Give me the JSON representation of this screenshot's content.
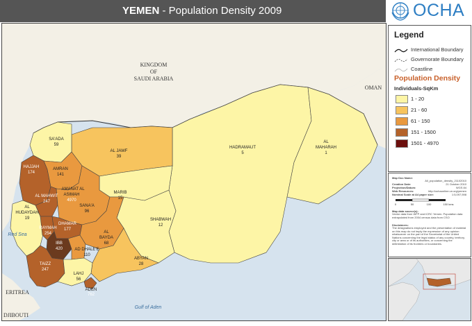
{
  "title": {
    "bold": "YEMEN",
    "rest": " - Population Density 2009"
  },
  "logo": {
    "text": "OCHA",
    "icon": "un-emblem-icon"
  },
  "legend": {
    "heading": "Legend",
    "boundaries": [
      "International Boundary",
      "Governorate Boundary",
      "Coastline"
    ],
    "density_heading": "Population Density",
    "units": "Individuals-SqKm",
    "classes": [
      {
        "label": "1 - 20",
        "color": "#fdf5a6"
      },
      {
        "label": "21 - 60",
        "color": "#f7c45e"
      },
      {
        "label": "61 - 150",
        "color": "#e9993f"
      },
      {
        "label": "151 - 1500",
        "color": "#b4622a"
      },
      {
        "label": "1501 - 4970",
        "color": "#6b0e0c"
      }
    ]
  },
  "countries": [
    "KINGDOM",
    "OF",
    "SAUDI ARABIA",
    "OMAN",
    "ERITREA",
    "DJIBOUTI"
  ],
  "seas": [
    "Red Sea",
    "Gulf of Aden"
  ],
  "governorates": [
    {
      "name": "SA'ADA",
      "value": "59"
    },
    {
      "name": "AL JAWF",
      "value": "39"
    },
    {
      "name": "HADRAMAUT",
      "value": "5"
    },
    {
      "name": "AL MAHARAH",
      "value": "1"
    },
    {
      "name": "HAJJAH",
      "value": "174"
    },
    {
      "name": "AMRAN",
      "value": "141"
    },
    {
      "name": "AMANAT AL ASIMAH",
      "value": "4970"
    },
    {
      "name": "AL MAHWIT",
      "value": "247"
    },
    {
      "name": "MARIB",
      "value": "15"
    },
    {
      "name": "SANA'A",
      "value": "96"
    },
    {
      "name": "AL HUDAYDAH",
      "value": "19"
    },
    {
      "name": "DHAMAR",
      "value": "177"
    },
    {
      "name": "RAYMAH",
      "value": "254"
    },
    {
      "name": "SHABWAH",
      "value": "12"
    },
    {
      "name": "AL BAYDA",
      "value": "68"
    },
    {
      "name": "IBB",
      "value": "420"
    },
    {
      "name": "AD DHALE'E",
      "value": "110"
    },
    {
      "name": "ABYAN",
      "value": "28"
    },
    {
      "name": "TAIZZ",
      "value": "247"
    },
    {
      "name": "LAHJ",
      "value": "56"
    },
    {
      "name": "ADEN",
      "value": "762"
    }
  ],
  "info": {
    "map_doc_label": "Map Doc Name:",
    "map_doc_value": "All_population_density_21102010",
    "creation_label": "Creation Date:",
    "creation_value": "21 October 2010",
    "projection_label": "Projection/Datum:",
    "projection_value": "WGS 84",
    "web_label": "Web Resources:",
    "web_value": "http://ochaonline.un.org/yemen",
    "scale_label": "Nominal Scale at A4 paper size:",
    "scale_value": "1:5,097,598",
    "scalebar_ticks": [
      "0",
      "50",
      "100",
      "150 kms"
    ],
    "sources_label": "Map data source(s):",
    "sources_text": "Vector data from WFP and ICRC Yemen. Population data extrapolated from 2004 census data from CSO",
    "disclaimer_label": "Disclaimers:",
    "disclaimer_text": "The designations employed and the presentation of material on this map do not imply the expression of any opinion whatsoever on the part of the Secretariat of the United Nations concerning the legal status of any country, territory, city or area or of its authorities, or concerning the delimitation of its frontiers or boundaries."
  }
}
